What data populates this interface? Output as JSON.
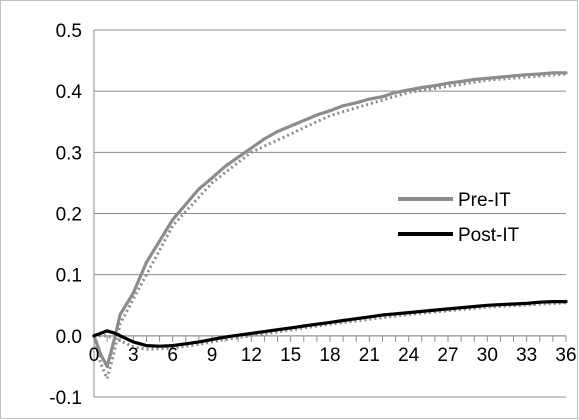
{
  "chart_data": {
    "type": "line",
    "title": "",
    "xlabel": "",
    "ylabel": "",
    "xlim": [
      0,
      36
    ],
    "ylim": [
      -0.1,
      0.5
    ],
    "x_ticks": [
      0,
      3,
      6,
      9,
      12,
      15,
      18,
      21,
      24,
      27,
      30,
      33,
      36
    ],
    "y_ticks": [
      -0.1,
      0.0,
      0.1,
      0.2,
      0.3,
      0.4,
      0.5
    ],
    "y_tick_labels": [
      "-0.1",
      "0.0",
      "0.1",
      "0.2",
      "0.3",
      "0.4",
      "0.5"
    ],
    "grid": "horizontal",
    "legend": "right",
    "series": [
      {
        "name": "Pre-IT",
        "color": "#8c8c8c",
        "x": [
          0,
          0.5,
          1,
          1.5,
          2,
          3,
          4,
          5,
          6,
          7,
          8,
          9,
          10,
          11,
          12,
          13,
          14,
          15,
          16,
          17,
          18,
          19,
          20,
          21,
          22,
          23,
          24,
          25,
          26,
          27,
          28,
          29,
          30,
          31,
          32,
          33,
          34,
          35,
          36
        ],
        "values": [
          0.0,
          -0.03,
          -0.05,
          -0.01,
          0.035,
          0.07,
          0.12,
          0.155,
          0.19,
          0.215,
          0.24,
          0.258,
          0.277,
          0.292,
          0.307,
          0.322,
          0.334,
          0.343,
          0.352,
          0.361,
          0.368,
          0.376,
          0.381,
          0.387,
          0.391,
          0.398,
          0.402,
          0.406,
          0.409,
          0.413,
          0.416,
          0.419,
          0.421,
          0.423,
          0.425,
          0.427,
          0.428,
          0.43,
          0.43
        ]
      },
      {
        "name": "Post-IT",
        "color": "#000000",
        "x": [
          0,
          1,
          1.5,
          2,
          3,
          4,
          5,
          6,
          7,
          8,
          9,
          10,
          11,
          12,
          13,
          14,
          15,
          16,
          17,
          18,
          19,
          20,
          21,
          22,
          23,
          24,
          25,
          26,
          27,
          28,
          29,
          30,
          31,
          32,
          33,
          34,
          35,
          36
        ],
        "values": [
          0.0,
          0.008,
          0.005,
          0.0,
          -0.01,
          -0.016,
          -0.017,
          -0.016,
          -0.013,
          -0.01,
          -0.006,
          -0.002,
          0.001,
          0.004,
          0.007,
          0.01,
          0.013,
          0.016,
          0.019,
          0.022,
          0.025,
          0.028,
          0.031,
          0.034,
          0.036,
          0.038,
          0.04,
          0.042,
          0.044,
          0.046,
          0.048,
          0.05,
          0.051,
          0.052,
          0.053,
          0.055,
          0.056,
          0.056
        ]
      }
    ],
    "confidence_bands": [
      {
        "series": "Pre-IT",
        "color": "#8c8c8c",
        "x": [
          0,
          0.5,
          1,
          1.5,
          2,
          3,
          6,
          9,
          12,
          18,
          24,
          30,
          36
        ],
        "values": [
          0.0,
          -0.045,
          -0.07,
          -0.03,
          0.02,
          0.06,
          0.18,
          0.25,
          0.3,
          0.36,
          0.398,
          0.418,
          0.428
        ]
      },
      {
        "series": "Post-IT",
        "color": "#8c8c8c",
        "x": [
          0,
          1,
          2,
          3,
          4,
          5,
          6,
          8,
          10,
          12,
          18,
          24,
          30,
          36
        ],
        "values": [
          0.0,
          0.0,
          -0.008,
          -0.018,
          -0.022,
          -0.021,
          -0.02,
          -0.014,
          -0.006,
          0.0,
          0.019,
          0.035,
          0.047,
          0.054
        ]
      }
    ]
  }
}
